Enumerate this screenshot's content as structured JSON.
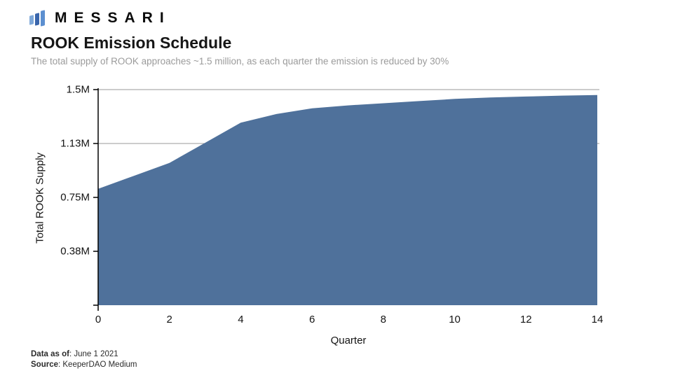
{
  "header": {
    "brand": "MESSARI",
    "title": "ROOK Emission Schedule",
    "subtitle": "The total supply of ROOK approaches ~1.5 million, as each quarter the emission is reduced by 30%"
  },
  "colors": {
    "area_fill": "#4f719b",
    "gridline": "#9a9a9a",
    "axis": "#000000",
    "logo_bar_light": "#7fa9da",
    "logo_bar_dark": "#3a66ac",
    "logo_bar_mid": "#5c8fd0"
  },
  "chart_data": {
    "type": "area",
    "title": "ROOK Emission Schedule",
    "subtitle": "The total supply of ROOK approaches ~1.5 million, as each quarter the emission is reduced by 30%",
    "xlabel": "Quarter",
    "ylabel": "Total ROOK Supply",
    "x": [
      0,
      1,
      2,
      3,
      4,
      5,
      6,
      7,
      8,
      9,
      10,
      11,
      12,
      13,
      14
    ],
    "values_millions": [
      0.81,
      0.9,
      0.99,
      1.13,
      1.27,
      1.33,
      1.37,
      1.39,
      1.405,
      1.42,
      1.435,
      1.445,
      1.452,
      1.458,
      1.462
    ],
    "xlim": [
      0,
      14
    ],
    "ylim": [
      0,
      1.5
    ],
    "x_ticks": [
      0,
      2,
      4,
      6,
      8,
      10,
      12,
      14
    ],
    "y_ticks": [
      {
        "value": 1.5,
        "label": "1.5M"
      },
      {
        "value": 1.125,
        "label": "1.13M"
      },
      {
        "value": 0.75,
        "label": "0.75M"
      },
      {
        "value": 0.375,
        "label": "0.38M"
      },
      {
        "value": 0,
        "label": ""
      }
    ],
    "gridline_values": [
      1.5,
      1.125
    ],
    "grid": "horizontal-partial",
    "legend": "none"
  },
  "footer": {
    "data_as_of_label": "Data as of",
    "data_as_of_value": ": June 1 2021",
    "source_label": "Source",
    "source_value": ": KeeperDAO Medium"
  }
}
